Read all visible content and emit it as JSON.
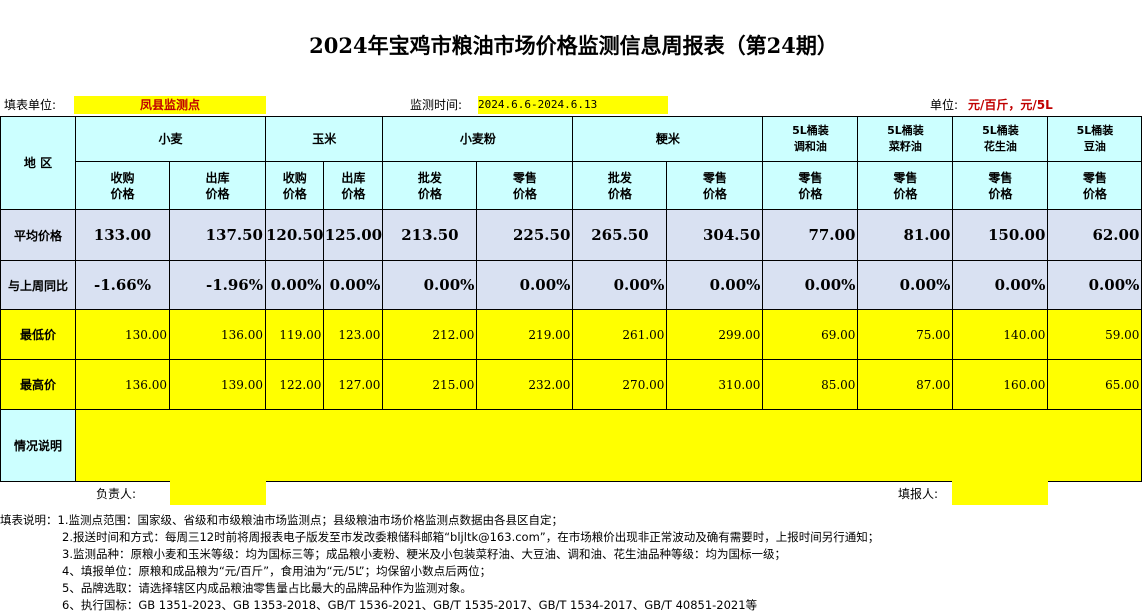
{
  "title": "2024年宝鸡市粮油市场价格监测信息周报表（第24期）",
  "meta": {
    "unit_label": "填表单位:",
    "unit_value": "凤县监测点",
    "time_label": "监测时间:",
    "time_value": "2024.6.6-2024.6.13",
    "price_unit_label": "单位:",
    "price_unit_value": "元/百斤，元/5L"
  },
  "header": {
    "region": "地  区",
    "wheat": "小麦",
    "corn": "玉米",
    "flour": "小麦粉",
    "rice": "粳米",
    "blend_oil": "5L桶装\n调和油",
    "rapeseed_oil": "5L桶装\n菜籽油",
    "peanut_oil": "5L桶装\n花生油",
    "soybean_oil": "5L桶装\n豆油",
    "purchase": "收购\n价格",
    "outbound": "出库\n价格",
    "wholesale": "批发\n价格",
    "retail": "零售\n价格"
  },
  "rows": {
    "avg_label": "平均价格",
    "avg": [
      "133.00",
      "137.50",
      "120.50",
      "125.00",
      "213.50",
      "225.50",
      "265.50",
      "304.50",
      "77.00",
      "81.00",
      "150.00",
      "62.00"
    ],
    "yoy_label": "与上周同比",
    "yoy": [
      "-1.66%",
      "-1.96%",
      "0.00%",
      "0.00%",
      "0.00%",
      "0.00%",
      "0.00%",
      "0.00%",
      "0.00%",
      "0.00%",
      "0.00%",
      "0.00%"
    ],
    "min_label": "最低价",
    "min": [
      "130.00",
      "136.00",
      "119.00",
      "123.00",
      "212.00",
      "219.00",
      "261.00",
      "299.00",
      "69.00",
      "75.00",
      "140.00",
      "59.00"
    ],
    "max_label": "最高价",
    "max": [
      "136.00",
      "139.00",
      "122.00",
      "127.00",
      "215.00",
      "232.00",
      "270.00",
      "310.00",
      "85.00",
      "87.00",
      "160.00",
      "65.00"
    ],
    "note_label": "情况说明"
  },
  "footer": {
    "person_label": "负责人:",
    "filler_label": "填报人:"
  },
  "notes": [
    "填表说明：1.监测点范围：国家级、省级和市级粮油市场监测点；县级粮油市场价格监测点数据由各县区自定；",
    "2.报送时间和方式：每周三12时前将周报表电子版发至市发改委粮储科邮箱“bljltk@163.com”，在市场粮价出现非正常波动及确有需要时，上报时间另行通知；",
    "3.监测品种：原粮小麦和玉米等级：均为国标三等；成品粮小麦粉、粳米及小包装菜籽油、大豆油、调和油、花生油品种等级：均为国标一级；",
    "4、填报单位：原粮和成品粮为“元/百斤”，食用油为“元/5L”；均保留小数点后两位；",
    "5、品牌选取：请选择辖区内成品粮油零售量占比最大的品牌品种作为监测对象。",
    "6、执行国标：GB 1351-2023、GB 1353-2018、GB/T 1536-2021、GB/T 1535-2017、GB/T 1534-2017、GB/T 40851-2021等"
  ]
}
